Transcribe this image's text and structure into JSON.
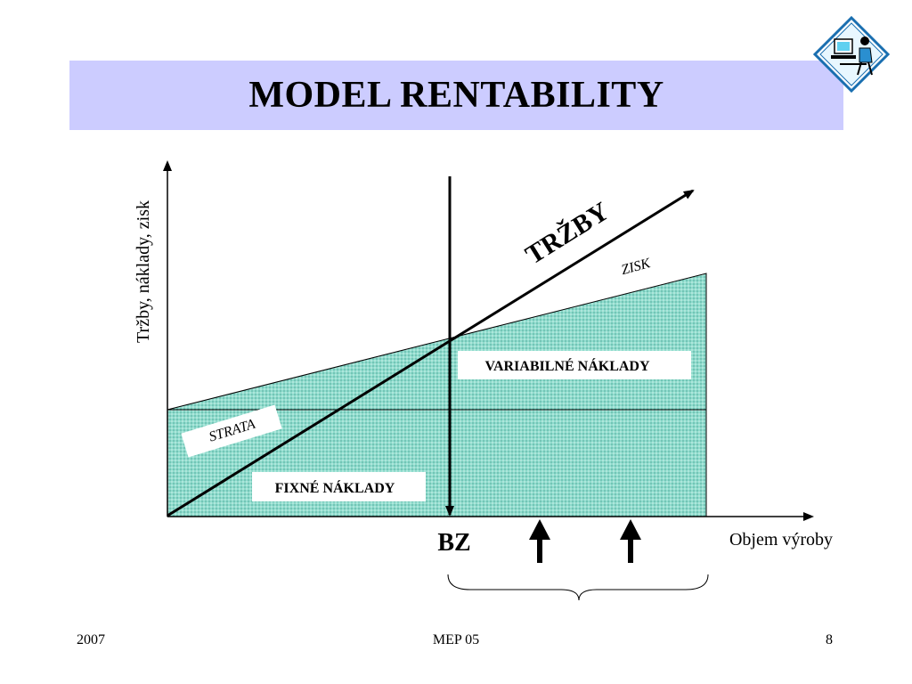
{
  "slide": {
    "title": "MODEL RENTABILITY"
  },
  "diagram": {
    "y_axis_label": "Tržby, náklady, zisk",
    "x_axis_label": "Objem výroby",
    "revenue_label": "TRŽBY",
    "profit_label": "ZISK",
    "loss_label": "STRATA",
    "variable_costs_label": "VARIABILNÉ NÁKLADY",
    "fixed_costs_label": "FIXNÉ NÁKLADY",
    "break_even_label": "BZ",
    "fill_color": "#8fdccd",
    "stroke_color": "#000000"
  },
  "footer": {
    "year": "2007",
    "center": "MEP 05",
    "page": "8"
  }
}
